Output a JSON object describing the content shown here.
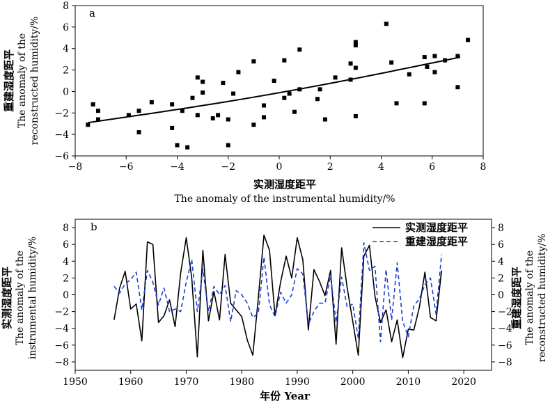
{
  "chart_data": [
    {
      "type": "scatter",
      "panel_label": "a",
      "xlabel_cn": "实测湿度距平",
      "xlabel_en": "The anomaly of the instrumental humidity/%",
      "ylabel_cn": "重建湿度距平",
      "ylabel_en1": "The anomaly of the",
      "ylabel_en2": "reconstructed humidity/%",
      "xlim": [
        -8,
        8
      ],
      "ylim": [
        -6,
        8
      ],
      "xticks": [
        -8,
        -6,
        -4,
        -2,
        0,
        2,
        4,
        6,
        8
      ],
      "yticks": [
        -6,
        -4,
        -2,
        0,
        2,
        4,
        6,
        8
      ],
      "points": [
        [
          -7.5,
          -3.1
        ],
        [
          -7.3,
          -1.2
        ],
        [
          -7.1,
          -1.8
        ],
        [
          -7.1,
          -2.6
        ],
        [
          -5.9,
          -2.2
        ],
        [
          -5.5,
          -1.8
        ],
        [
          -5.5,
          -3.8
        ],
        [
          -5.0,
          -1.0
        ],
        [
          -4.2,
          -1.2
        ],
        [
          -4.2,
          -3.4
        ],
        [
          -4.0,
          -5.0
        ],
        [
          -3.8,
          -1.8
        ],
        [
          -3.6,
          -5.2
        ],
        [
          -3.4,
          -0.6
        ],
        [
          -3.2,
          -2.2
        ],
        [
          -3.2,
          1.3
        ],
        [
          -3.0,
          0.9
        ],
        [
          -3.0,
          -0.1
        ],
        [
          -2.6,
          -2.5
        ],
        [
          -2.4,
          -2.2
        ],
        [
          -2.2,
          0.8
        ],
        [
          -2.0,
          -2.6
        ],
        [
          -2.0,
          -5.0
        ],
        [
          -1.8,
          -0.2
        ],
        [
          -1.6,
          1.8
        ],
        [
          -1.0,
          2.8
        ],
        [
          -1.0,
          -3.1
        ],
        [
          -0.6,
          -2.4
        ],
        [
          -0.6,
          -1.3
        ],
        [
          -0.2,
          1.0
        ],
        [
          0.2,
          2.9
        ],
        [
          0.2,
          -0.6
        ],
        [
          0.4,
          -0.2
        ],
        [
          0.6,
          -1.9
        ],
        [
          0.8,
          3.9
        ],
        [
          0.8,
          0.2
        ],
        [
          1.5,
          -0.7
        ],
        [
          1.6,
          0.2
        ],
        [
          1.8,
          -2.6
        ],
        [
          2.2,
          1.3
        ],
        [
          2.8,
          2.6
        ],
        [
          2.8,
          1.1
        ],
        [
          3.0,
          4.6
        ],
        [
          3.0,
          4.3
        ],
        [
          3.0,
          2.2
        ],
        [
          3.0,
          -2.3
        ],
        [
          4.2,
          6.3
        ],
        [
          4.4,
          2.7
        ],
        [
          4.6,
          -1.1
        ],
        [
          5.1,
          1.6
        ],
        [
          5.7,
          3.2
        ],
        [
          5.7,
          -1.1
        ],
        [
          5.8,
          2.3
        ],
        [
          6.1,
          3.3
        ],
        [
          6.1,
          1.8
        ],
        [
          6.5,
          2.9
        ],
        [
          7.0,
          3.3
        ],
        [
          7.0,
          0.4
        ],
        [
          7.4,
          4.8
        ]
      ],
      "fit_line": {
        "x": [
          -7.5,
          7.1
        ],
        "y": [
          -2.9,
          3.2
        ]
      }
    },
    {
      "type": "line",
      "panel_label": "b",
      "xlabel": "年份 Year",
      "ylabel_left_cn": "实测湿度距平",
      "ylabel_left_en1": "The anomaly of the",
      "ylabel_left_en2": "instrumental humidity/%",
      "ylabel_right_cn": "重建湿度距平",
      "ylabel_right_en1": "The anomaly of the",
      "ylabel_right_en2": "reconstructed humidity/%",
      "xlim": [
        1950,
        2025
      ],
      "ylim": [
        -9,
        9
      ],
      "xticks": [
        1950,
        1960,
        1970,
        1980,
        1990,
        2000,
        2010,
        2020
      ],
      "yticks": [
        -8,
        -6,
        -4,
        -2,
        0,
        2,
        4,
        6,
        8
      ],
      "legend_position": "top-right",
      "years": [
        1957,
        1958,
        1959,
        1960,
        1961,
        1962,
        1963,
        1964,
        1965,
        1966,
        1967,
        1968,
        1969,
        1970,
        1971,
        1972,
        1973,
        1974,
        1975,
        1976,
        1977,
        1978,
        1979,
        1980,
        1981,
        1982,
        1983,
        1984,
        1985,
        1986,
        1987,
        1988,
        1989,
        1990,
        1991,
        1992,
        1993,
        1994,
        1995,
        1996,
        1997,
        1998,
        1999,
        2000,
        2001,
        2002,
        2003,
        2004,
        2005,
        2006,
        2007,
        2008,
        2009,
        2010,
        2011,
        2012,
        2013,
        2014,
        2015,
        2016
      ],
      "series": [
        {
          "name": "实测湿度距平",
          "color": "#000000",
          "style": "solid",
          "values": [
            -3.0,
            0.8,
            2.8,
            -1.7,
            -1.1,
            -5.5,
            6.3,
            6.0,
            -3.3,
            -2.5,
            -0.6,
            -3.8,
            2.6,
            6.8,
            2.0,
            -7.4,
            5.3,
            -3.1,
            0.4,
            -3.0,
            4.8,
            -1.0,
            -1.8,
            -2.6,
            -5.4,
            -7.2,
            -0.3,
            7.1,
            5.3,
            -2.5,
            1.5,
            4.6,
            2.0,
            6.8,
            4.2,
            -4.2,
            3.0,
            1.6,
            -0.1,
            2.9,
            -5.9,
            5.6,
            0.8,
            -3.2,
            -7.2,
            4.6,
            5.9,
            -0.2,
            -3.3,
            -1.8,
            -5.6,
            -3.0,
            -7.5,
            -4.1,
            -4.2,
            -1.5,
            2.7,
            -2.7,
            -3.1,
            2.9
          ]
        },
        {
          "name": "重建湿度距平",
          "color": "#1f3fcf",
          "style": "dashed",
          "values": [
            1.0,
            0.2,
            1.3,
            1.8,
            2.7,
            -1.8,
            2.9,
            1.5,
            -1.2,
            0.8,
            -2.0,
            -1.7,
            -2.0,
            1.5,
            4.2,
            -2.0,
            3.0,
            -2.0,
            1.0,
            0.0,
            1.1,
            -3.2,
            0.5,
            0.0,
            -1.0,
            -2.7,
            -2.2,
            4.5,
            -1.2,
            -2.6,
            0.3,
            -1.0,
            0.0,
            3.1,
            2.5,
            -3.5,
            -2.0,
            -1.0,
            -1.0,
            2.3,
            -3.3,
            2.1,
            -1.5,
            -1.1,
            -5.2,
            6.2,
            2.9,
            3.4,
            -5.6,
            3.0,
            -3.0,
            3.8,
            -3.2,
            -5.0,
            -1.3,
            -0.5,
            1.2,
            2.0,
            -2.3,
            4.8
          ]
        }
      ]
    }
  ]
}
